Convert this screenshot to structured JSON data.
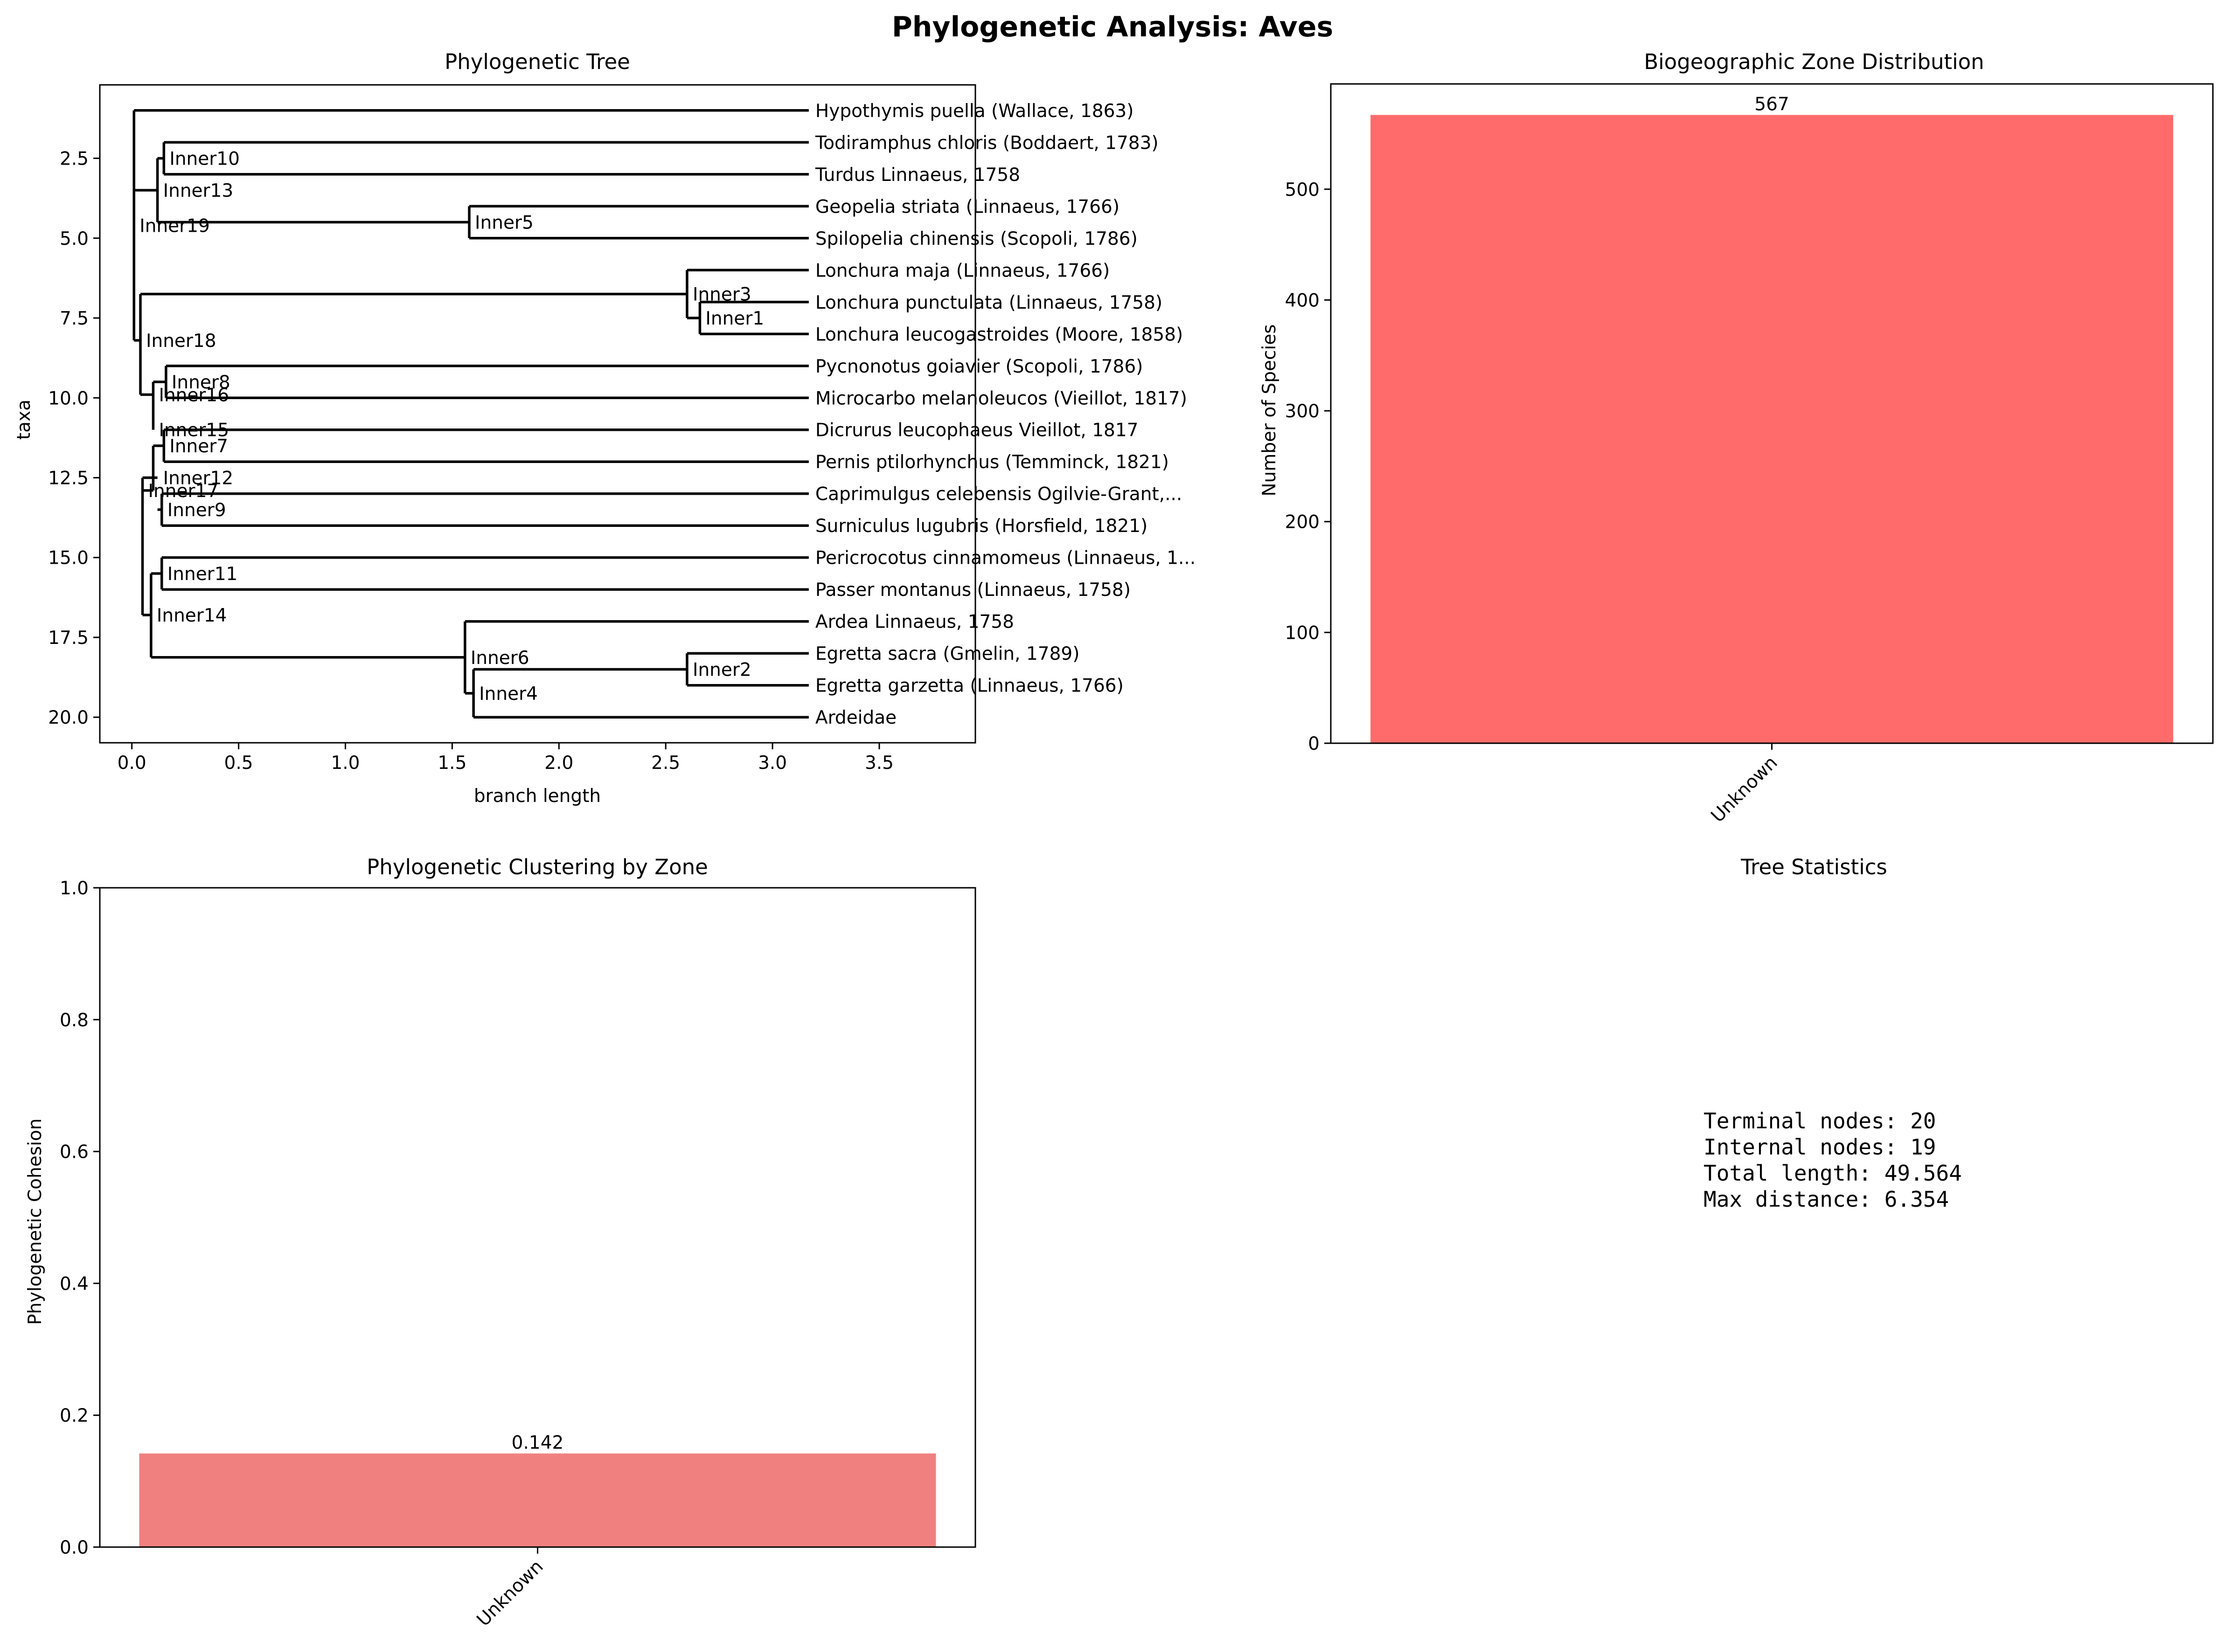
{
  "figure": {
    "title": "Phylogenetic Analysis: Aves"
  },
  "colors": {
    "tree": "#000000",
    "bar_zone": "#ff6b6b",
    "bar_cohesion": "#f08080",
    "axis": "#000000"
  },
  "chart_data": [
    {
      "type": "tree",
      "title": "Phylogenetic Tree",
      "xlabel": "branch length",
      "ylabel": "taxa",
      "xlim": [
        -0.15,
        3.95
      ],
      "ylim": [
        20.8,
        0.2
      ],
      "xticks": [
        0.0,
        0.5,
        1.0,
        1.5,
        2.0,
        2.5,
        3.0,
        3.5
      ],
      "yticks": [
        2.5,
        5.0,
        7.5,
        10.0,
        12.5,
        15.0,
        17.5,
        20.0
      ],
      "leaves": [
        {
          "name": "Hypothymis puella (Wallace, 1863)",
          "x": 3.17,
          "y": 1
        },
        {
          "name": "Todiramphus chloris (Boddaert, 1783)",
          "x": 3.17,
          "y": 2
        },
        {
          "name": "Turdus Linnaeus, 1758",
          "x": 3.17,
          "y": 3
        },
        {
          "name": "Geopelia striata (Linnaeus, 1766)",
          "x": 3.17,
          "y": 4
        },
        {
          "name": "Spilopelia chinensis (Scopoli, 1786)",
          "x": 3.17,
          "y": 5
        },
        {
          "name": "Lonchura maja (Linnaeus, 1766)",
          "x": 3.17,
          "y": 6
        },
        {
          "name": "Lonchura punctulata (Linnaeus, 1758)",
          "x": 3.17,
          "y": 7
        },
        {
          "name": "Lonchura leucogastroides (Moore, 1858)",
          "x": 3.17,
          "y": 8
        },
        {
          "name": "Pycnonotus goiavier (Scopoli, 1786)",
          "x": 3.17,
          "y": 9
        },
        {
          "name": "Microcarbo melanoleucos (Vieillot, 1817)",
          "x": 3.17,
          "y": 10
        },
        {
          "name": "Dicrurus leucophaeus Vieillot, 1817",
          "x": 3.17,
          "y": 11
        },
        {
          "name": "Pernis ptilorhynchus (Temminck, 1821)",
          "x": 3.17,
          "y": 12
        },
        {
          "name": "Caprimulgus celebensis Ogilvie-Grant,...",
          "x": 3.17,
          "y": 13
        },
        {
          "name": "Surniculus lugubris (Horsfield, 1821)",
          "x": 3.17,
          "y": 14
        },
        {
          "name": "Pericrocotus cinnamomeus (Linnaeus, 1...",
          "x": 3.17,
          "y": 15
        },
        {
          "name": "Passer montanus (Linnaeus, 1758)",
          "x": 3.17,
          "y": 16
        },
        {
          "name": "Ardea Linnaeus, 1758",
          "x": 3.17,
          "y": 17
        },
        {
          "name": "Egretta sacra (Gmelin, 1789)",
          "x": 3.17,
          "y": 18
        },
        {
          "name": "Egretta garzetta (Linnaeus, 1766)",
          "x": 3.17,
          "y": 19
        },
        {
          "name": "Ardeidae",
          "x": 3.17,
          "y": 20
        }
      ],
      "internal_nodes": [
        {
          "name": "Inner1",
          "x": 2.66,
          "y": 7.5
        },
        {
          "name": "Inner2",
          "x": 2.6,
          "y": 18.5
        },
        {
          "name": "Inner3",
          "x": 2.6,
          "y": 6.75
        },
        {
          "name": "Inner4",
          "x": 1.6,
          "y": 19.25
        },
        {
          "name": "Inner5",
          "x": 1.58,
          "y": 4.5
        },
        {
          "name": "Inner6",
          "x": 1.56,
          "y": 18.125
        },
        {
          "name": "Inner7",
          "x": 0.15,
          "y": 11.5
        },
        {
          "name": "Inner8",
          "x": 0.16,
          "y": 9.5
        },
        {
          "name": "Inner9",
          "x": 0.14,
          "y": 13.5
        },
        {
          "name": "Inner10",
          "x": 0.15,
          "y": 2.5
        },
        {
          "name": "Inner11",
          "x": 0.14,
          "y": 15.5
        },
        {
          "name": "Inner12",
          "x": 0.12,
          "y": 12.5
        },
        {
          "name": "Inner13",
          "x": 0.12,
          "y": 3.5
        },
        {
          "name": "Inner14",
          "x": 0.09,
          "y": 16.8
        },
        {
          "name": "Inner15",
          "x": 0.1,
          "y": 11.0
        },
        {
          "name": "Inner16",
          "x": 0.1,
          "y": 9.9
        },
        {
          "name": "Inner17",
          "x": 0.05,
          "y": 12.9
        },
        {
          "name": "Inner18",
          "x": 0.04,
          "y": 8.2
        },
        {
          "name": "Inner19",
          "x": 0.01,
          "y": 4.6
        }
      ],
      "edges": [
        [
          "Inner19",
          "Hypothymis puella (Wallace, 1863)"
        ],
        [
          "Inner19",
          "Inner13"
        ],
        [
          "Inner19",
          "Inner18"
        ],
        [
          "Inner13",
          "Inner10"
        ],
        [
          "Inner13",
          "Inner5"
        ],
        [
          "Inner10",
          "Todiramphus chloris (Boddaert, 1783)"
        ],
        [
          "Inner10",
          "Turdus Linnaeus, 1758"
        ],
        [
          "Inner5",
          "Geopelia striata (Linnaeus, 1766)"
        ],
        [
          "Inner5",
          "Spilopelia chinensis (Scopoli, 1786)"
        ],
        [
          "Inner18",
          "Inner3"
        ],
        [
          "Inner18",
          "Inner16"
        ],
        [
          "Inner3",
          "Lonchura maja (Linnaeus, 1766)"
        ],
        [
          "Inner3",
          "Inner1"
        ],
        [
          "Inner1",
          "Lonchura punctulata (Linnaeus, 1758)"
        ],
        [
          "Inner1",
          "Lonchura leucogastroides (Moore, 1858)"
        ],
        [
          "Inner16",
          "Inner8"
        ],
        [
          "Inner16",
          "Inner15"
        ],
        [
          "Inner8",
          "Pycnonotus goiavier (Scopoli, 1786)"
        ],
        [
          "Inner8",
          "Microcarbo melanoleucos (Vieillot, 1817)"
        ],
        [
          "Inner15",
          "Inner7"
        ],
        [
          "Inner15",
          "Inner17"
        ],
        [
          "Inner7",
          "Dicrurus leucophaeus Vieillot, 1817"
        ],
        [
          "Inner7",
          "Pernis ptilorhynchus (Temminck, 1821)"
        ],
        [
          "Inner17",
          "Inner12"
        ],
        [
          "Inner17",
          "Inner14"
        ],
        [
          "Inner12",
          "Inner9"
        ],
        [
          "Inner9",
          "Caprimulgus celebensis Ogilvie-Grant,..."
        ],
        [
          "Inner9",
          "Surniculus lugubris (Horsfield, 1821)"
        ],
        [
          "Inner14",
          "Inner11"
        ],
        [
          "Inner14",
          "Inner6"
        ],
        [
          "Inner11",
          "Pericrocotus cinnamomeus (Linnaeus, 1..."
        ],
        [
          "Inner11",
          "Passer montanus (Linnaeus, 1758)"
        ],
        [
          "Inner6",
          "Ardea Linnaeus, 1758"
        ],
        [
          "Inner6",
          "Inner4"
        ],
        [
          "Inner4",
          "Inner2"
        ],
        [
          "Inner4",
          "Ardeidae"
        ],
        [
          "Inner2",
          "Egretta sacra (Gmelin, 1789)"
        ],
        [
          "Inner2",
          "Egretta garzetta (Linnaeus, 1766)"
        ]
      ]
    },
    {
      "type": "bar",
      "title": "Biogeographic Zone Distribution",
      "xlabel": "",
      "ylabel": "Number of Species",
      "categories": [
        "Unknown"
      ],
      "values": [
        567
      ],
      "value_labels": [
        "567"
      ],
      "ylim": [
        0,
        595
      ],
      "yticks": [
        0,
        100,
        200,
        300,
        400,
        500
      ]
    },
    {
      "type": "bar",
      "title": "Phylogenetic Clustering by Zone",
      "xlabel": "",
      "ylabel": "Phylogenetic Cohesion",
      "categories": [
        "Unknown"
      ],
      "values": [
        0.142
      ],
      "value_labels": [
        "0.142"
      ],
      "ylim": [
        0,
        1.0
      ],
      "yticks": [
        0.0,
        0.2,
        0.4,
        0.6,
        0.8,
        1.0
      ]
    },
    {
      "type": "table",
      "title": "Tree Statistics",
      "lines": [
        "Terminal nodes: 20",
        "Internal nodes: 19",
        "Total length: 49.564",
        "Max distance: 6.354"
      ]
    }
  ]
}
